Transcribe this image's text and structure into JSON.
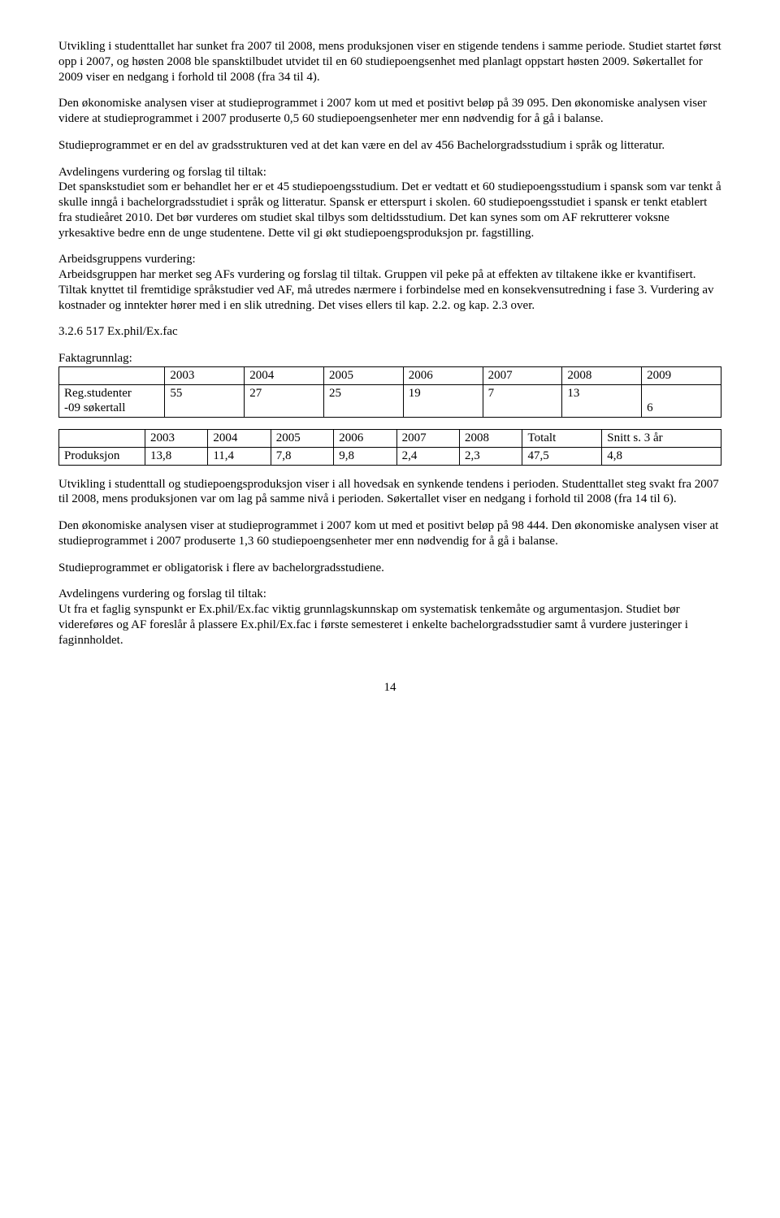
{
  "paragraphs": {
    "p1": "Utvikling i studenttallet har sunket fra 2007 til 2008, mens produksjonen viser en stigende tendens i samme periode. Studiet startet først opp i 2007, og høsten 2008 ble spansktilbudet utvidet til en 60 studiepoengsenhet med planlagt oppstart høsten 2009. Søkertallet for 2009 viser en nedgang i forhold til 2008 (fra 34 til 4).",
    "p2": "Den økonomiske analysen viser at studieprogrammet i 2007 kom ut med et positivt beløp på 39 095. Den økonomiske analysen viser videre at studieprogrammet i 2007 produserte 0,5 60 studiepoengsenheter mer enn nødvendig for å gå i balanse.",
    "p3": "Studieprogrammet er en del av gradsstrukturen ved at det kan være en del av 456 Bachelorgradsstudium i språk og litteratur.",
    "p4h": "Avdelingens vurdering og forslag til tiltak:",
    "p4": "Det spanskstudiet som er behandlet her er et 45 studiepoengsstudium. Det er vedtatt et 60 studiepoengsstudium i spansk som var tenkt å skulle inngå i bachelorgradsstudiet i språk og litteratur. Spansk er etterspurt i skolen. 60 studiepoengsstudiet i spansk er tenkt etablert fra studieåret 2010. Det bør vurderes om studiet skal tilbys som deltidsstudium. Det kan synes som om AF rekrutterer voksne yrkesaktive bedre enn de unge studentene. Dette vil gi økt studiepoengsproduksjon pr. fagstilling.",
    "p5h": "Arbeidsgruppens vurdering:",
    "p5": "Arbeidsgruppen har merket seg AFs vurdering og forslag til tiltak. Gruppen vil peke på at effekten av tiltakene ikke er kvantifisert. Tiltak knyttet til fremtidige språkstudier ved AF, må utredes nærmere i forbindelse med en konsekvensutredning i fase 3. Vurdering av kostnader og inntekter hører med i en slik utredning. Det vises ellers til kap. 2.2. og kap. 2.3 over.",
    "heading": "3.2.6    517 Ex.phil/Ex.fac",
    "fakta": "Faktagrunnlag:",
    "p6": "Utvikling i studenttall og studiepoengsproduksjon viser i all hovedsak en synkende tendens i perioden. Studenttallet steg svakt fra 2007 til 2008, mens produksjonen var om lag på samme nivå i perioden. Søkertallet viser en nedgang i forhold til 2008 (fra 14 til 6).",
    "p7": "Den økonomiske analysen viser at studieprogrammet i 2007 kom ut med et positivt beløp på 98 444. Den økonomiske analysen viser at studieprogrammet i 2007 produserte 1,3 60 studiepoengsenheter mer enn nødvendig for å gå i balanse.",
    "p8": "Studieprogrammet er obligatorisk i flere av bachelorgradsstudiene.",
    "p9h": "Avdelingens vurdering og forslag til tiltak:",
    "p9": "Ut fra et faglig synspunkt er Ex.phil/Ex.fac viktig grunnlagskunnskap om systematisk tenkemåte og argumentasjon. Studiet bør videreføres og AF foreslår å plassere Ex.phil/Ex.fac i første semesteret i enkelte bachelorgradsstudier samt å vurdere justeringer i faginnholdet."
  },
  "table1": {
    "headers": [
      "",
      "2003",
      "2004",
      "2005",
      "2006",
      "2007",
      "2008",
      "2009"
    ],
    "row1": [
      "Reg.studenter",
      "55",
      "27",
      "25",
      "19",
      "7",
      "13",
      ""
    ],
    "row2": [
      "-09 søkertall",
      "",
      "",
      "",
      "",
      "",
      "",
      "6"
    ],
    "col_widths": [
      "16%",
      "12%",
      "12%",
      "12%",
      "12%",
      "12%",
      "12%",
      "12%"
    ]
  },
  "table2": {
    "headers": [
      "",
      "2003",
      "2004",
      "2005",
      "2006",
      "2007",
      "2008",
      "Totalt",
      "Snitt s. 3 år"
    ],
    "row1": [
      "Produksjon",
      "13,8",
      "11,4",
      "7,8",
      "9,8",
      "2,4",
      "2,3",
      "47,5",
      "4,8"
    ],
    "col_widths": [
      "13%",
      "9.5%",
      "9.5%",
      "9.5%",
      "9.5%",
      "9.5%",
      "9.5%",
      "12%",
      "18%"
    ]
  },
  "page_number": "14"
}
